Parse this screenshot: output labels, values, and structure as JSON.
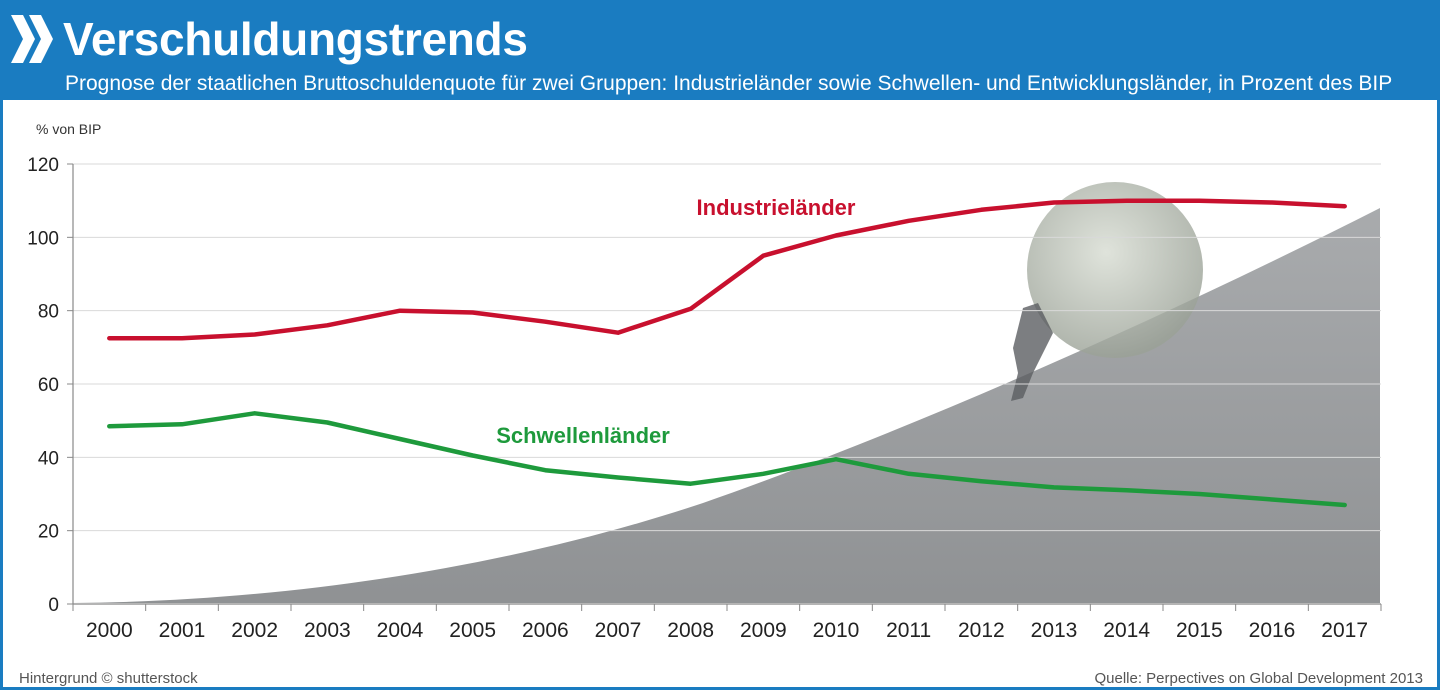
{
  "header": {
    "title": "Verschuldungstrends",
    "subtitle": "Prognose der staatlichen Bruttoschuldenquote für zwei Gruppen: Industrieländer sowie Schwellen- und Entwicklungsländer, in Prozent des BIP",
    "logo_icon": "double-chevron-right-icon",
    "background_color": "#1a7cc1"
  },
  "footer": {
    "credit": "Hintergrund © shutterstock",
    "source": "Quelle:  Perpectives on Global Development 2013"
  },
  "chart_data": {
    "type": "line",
    "title": "",
    "xlabel": "",
    "ylabel": "% von BIP",
    "ylim": [
      0,
      120
    ],
    "yticks": [
      0,
      20,
      40,
      60,
      80,
      100,
      120
    ],
    "grid": true,
    "x": [
      "2000",
      "2001",
      "2002",
      "2003",
      "2004",
      "2005",
      "2006",
      "2007",
      "2008",
      "2009",
      "2010",
      "2011",
      "2012",
      "2013",
      "2014",
      "2015",
      "2016",
      "2017"
    ],
    "series": [
      {
        "name": "Industrieländer",
        "color": "#c8102e",
        "values": [
          72.5,
          72.5,
          73.5,
          76,
          80,
          79.5,
          77,
          74,
          80.5,
          95,
          100.5,
          104.5,
          107.5,
          109.5,
          110,
          110,
          109.5,
          108.5
        ]
      },
      {
        "name": "Schwellenländer",
        "color": "#1e9a3c",
        "values": [
          48.5,
          49,
          52,
          49.5,
          45,
          40.5,
          36.5,
          34.5,
          32.8,
          35.5,
          39.5,
          35.5,
          33.5,
          31.8,
          31,
          30,
          28.5,
          27
        ]
      }
    ],
    "legend": "inline labels above lines"
  }
}
